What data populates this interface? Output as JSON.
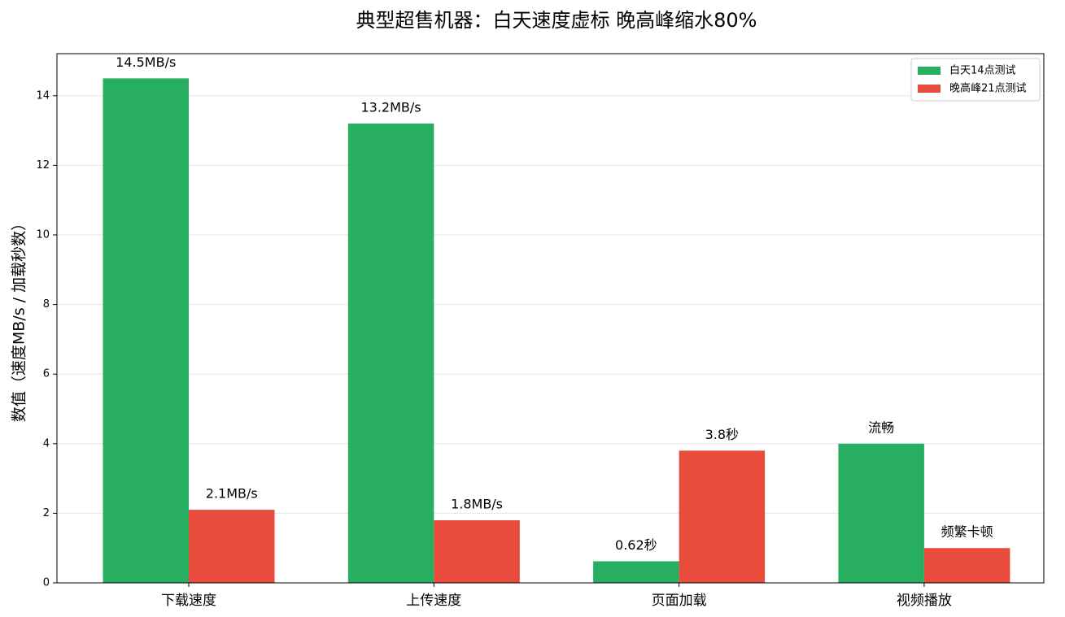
{
  "chart_data": {
    "type": "bar",
    "title": "典型超售机器：白天速度虚标 晚高峰缩水80%",
    "y_label": "数值（速度MB/s / 加载秒数）",
    "categories": [
      "下载速度",
      "上传速度",
      "页面加载",
      "视频播放"
    ],
    "series": [
      {
        "name": "白天14点测试",
        "color": "#27ae60",
        "values": [
          14.5,
          13.2,
          0.62,
          4
        ],
        "value_labels": [
          "14.5MB/s",
          "13.2MB/s",
          "0.62秒",
          "流畅"
        ]
      },
      {
        "name": "晚高峰21点测试",
        "color": "#e74c3c",
        "values": [
          2.1,
          1.8,
          3.8,
          1
        ],
        "value_labels": [
          "2.1MB/s",
          "1.8MB/s",
          "3.8秒",
          "频繁卡顿"
        ]
      }
    ],
    "ylim": [
      0,
      15.21
    ],
    "yticks": [
      0,
      2,
      4,
      6,
      8,
      10,
      12,
      14
    ],
    "grid": true,
    "legend": "upper right"
  }
}
